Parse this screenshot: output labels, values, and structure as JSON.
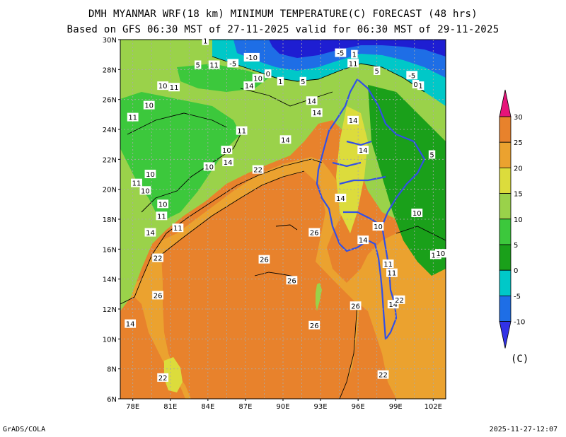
{
  "title_line1": "DMH MYANMAR WRF(18 km) MINIMUM TEMPERATURE(C) FORECAST (48 hrs)",
  "title_line2": "Based on GFS 06:30 MST of 27-11-2025 valid for 06:30 MST of 29-11-2025",
  "footer_left": "GrADS/COLA",
  "footer_right": "2025-11-27-12:07",
  "map": {
    "lat_labels": [
      "30N",
      "28N",
      "26N",
      "24N",
      "22N",
      "20N",
      "18N",
      "16N",
      "14N",
      "12N",
      "10N",
      "8N",
      "6N"
    ],
    "lon_labels": [
      "78E",
      "81E",
      "84E",
      "87E",
      "90E",
      "93E",
      "96E",
      "99E",
      "102E"
    ],
    "gridlines": "dotted",
    "colors": {
      "sea_warm": "#e8822c",
      "coast_warm": "#eba22f",
      "mid": "#dcdc3c",
      "land_mild": "#9ad24a",
      "land_cool": "#3cc83c",
      "highland": "#1aa01a",
      "cold": "#00c8c8",
      "very_cold": "#1e6ee6",
      "coldest": "#1e1ed2",
      "myanmar_boundary": "#3250e6"
    },
    "contour_labels": [
      {
        "text": "-10",
        "lon": 87.5,
        "lat": 28.8
      },
      {
        "text": "-5",
        "lon": 86.0,
        "lat": 28.4
      },
      {
        "text": "1",
        "lon": 83.8,
        "lat": 29.9
      },
      {
        "text": "5",
        "lon": 83.2,
        "lat": 28.3
      },
      {
        "text": "11",
        "lon": 84.5,
        "lat": 28.3
      },
      {
        "text": "10",
        "lon": 88.0,
        "lat": 27.4
      },
      {
        "text": "0",
        "lon": 88.8,
        "lat": 27.7
      },
      {
        "text": "1",
        "lon": 89.8,
        "lat": 27.2
      },
      {
        "text": "5",
        "lon": 91.6,
        "lat": 27.2
      },
      {
        "text": "14",
        "lon": 87.3,
        "lat": 26.9
      },
      {
        "text": "-5",
        "lon": 94.6,
        "lat": 29.1
      },
      {
        "text": "1",
        "lon": 95.7,
        "lat": 29.0
      },
      {
        "text": "11",
        "lon": 95.6,
        "lat": 28.4
      },
      {
        "text": "5",
        "lon": 97.5,
        "lat": 27.9
      },
      {
        "text": "-5",
        "lon": 100.3,
        "lat": 27.6
      },
      {
        "text": "0",
        "lon": 100.6,
        "lat": 27.0
      },
      {
        "text": "1",
        "lon": 101.0,
        "lat": 26.9
      },
      {
        "text": "10",
        "lon": 80.4,
        "lat": 26.9
      },
      {
        "text": "11",
        "lon": 81.3,
        "lat": 26.8
      },
      {
        "text": "10",
        "lon": 79.3,
        "lat": 25.6
      },
      {
        "text": "11",
        "lon": 78.0,
        "lat": 24.8
      },
      {
        "text": "11",
        "lon": 86.7,
        "lat": 23.9
      },
      {
        "text": "14",
        "lon": 92.7,
        "lat": 25.1
      },
      {
        "text": "14",
        "lon": 95.6,
        "lat": 24.6
      },
      {
        "text": "14",
        "lon": 92.3,
        "lat": 25.9
      },
      {
        "text": "14",
        "lon": 90.2,
        "lat": 23.3
      },
      {
        "text": "10",
        "lon": 85.5,
        "lat": 22.6
      },
      {
        "text": "14",
        "lon": 85.6,
        "lat": 21.8
      },
      {
        "text": "10",
        "lon": 84.1,
        "lat": 21.5
      },
      {
        "text": "22",
        "lon": 88.0,
        "lat": 21.3
      },
      {
        "text": "10",
        "lon": 79.4,
        "lat": 21.0
      },
      {
        "text": "11",
        "lon": 78.3,
        "lat": 20.4
      },
      {
        "text": "10",
        "lon": 79.0,
        "lat": 19.9
      },
      {
        "text": "10",
        "lon": 80.4,
        "lat": 19.0
      },
      {
        "text": "11",
        "lon": 80.3,
        "lat": 18.2
      },
      {
        "text": "11",
        "lon": 81.6,
        "lat": 17.4
      },
      {
        "text": "14",
        "lon": 79.4,
        "lat": 17.1
      },
      {
        "text": "14",
        "lon": 96.4,
        "lat": 22.6
      },
      {
        "text": "14",
        "lon": 94.6,
        "lat": 19.4
      },
      {
        "text": "26",
        "lon": 92.5,
        "lat": 17.1
      },
      {
        "text": "14",
        "lon": 96.4,
        "lat": 16.6
      },
      {
        "text": "10",
        "lon": 97.6,
        "lat": 17.5
      },
      {
        "text": "10",
        "lon": 100.7,
        "lat": 18.4
      },
      {
        "text": "5",
        "lon": 101.9,
        "lat": 22.3
      },
      {
        "text": "11",
        "lon": 102.2,
        "lat": 15.6
      },
      {
        "text": "10",
        "lon": 102.6,
        "lat": 15.7
      },
      {
        "text": "22",
        "lon": 80.0,
        "lat": 15.4
      },
      {
        "text": "26",
        "lon": 88.5,
        "lat": 15.3
      },
      {
        "text": "26",
        "lon": 90.7,
        "lat": 13.9
      },
      {
        "text": "11",
        "lon": 98.7,
        "lat": 14.4
      },
      {
        "text": "11",
        "lon": 98.4,
        "lat": 15.0
      },
      {
        "text": "26",
        "lon": 80.0,
        "lat": 12.9
      },
      {
        "text": "14",
        "lon": 77.8,
        "lat": 11.0
      },
      {
        "text": "14",
        "lon": 98.8,
        "lat": 12.3
      },
      {
        "text": "22",
        "lon": 99.3,
        "lat": 12.6
      },
      {
        "text": "26",
        "lon": 95.8,
        "lat": 12.2
      },
      {
        "text": "26",
        "lon": 92.5,
        "lat": 10.9
      },
      {
        "text": "22",
        "lon": 98.0,
        "lat": 7.6
      },
      {
        "text": "22",
        "lon": 80.4,
        "lat": 7.4
      }
    ]
  },
  "colorbar": {
    "ticks": [
      "30",
      "25",
      "20",
      "15",
      "10",
      "5",
      "0",
      "-5",
      "-10"
    ],
    "colors": [
      "#e8822c",
      "#eba22f",
      "#dcdc3c",
      "#9ad24a",
      "#3cc83c",
      "#1aa01a",
      "#00c8c8",
      "#1e6ee6"
    ],
    "top_color": "#e6147a",
    "bottom_color": "#3232e6",
    "unit": "(C)"
  }
}
